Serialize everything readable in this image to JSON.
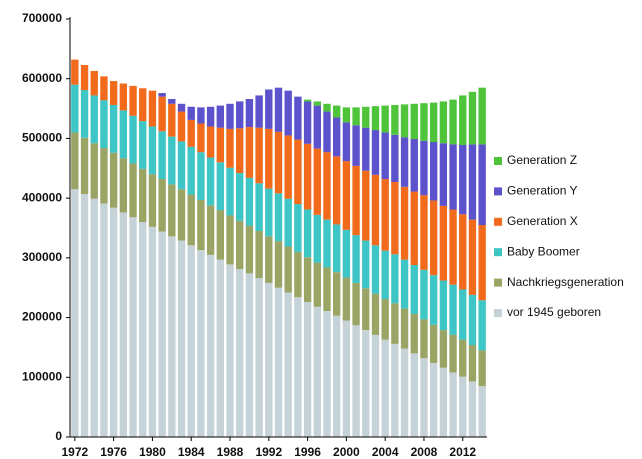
{
  "chart_data": {
    "type": "bar",
    "stacked": true,
    "categories": [
      "1972",
      null,
      null,
      null,
      "1976",
      null,
      null,
      null,
      "1980",
      null,
      null,
      null,
      "1984",
      null,
      null,
      null,
      "1988",
      null,
      null,
      null,
      "1992",
      null,
      null,
      null,
      "1996",
      null,
      null,
      null,
      "2000",
      null,
      null,
      null,
      "2004",
      null,
      null,
      null,
      "2008",
      null,
      null,
      null,
      "2012",
      null,
      null
    ],
    "series": [
      {
        "name": "vor 1945 geboren",
        "color": "#c5d3d9",
        "values": [
          415000,
          407000,
          399000,
          391000,
          384000,
          376000,
          368000,
          360000,
          352000,
          344000,
          336000,
          329000,
          321000,
          313000,
          305000,
          297000,
          289000,
          281000,
          274000,
          266000,
          258000,
          250000,
          242000,
          234000,
          226000,
          218000,
          211000,
          203000,
          195000,
          187000,
          179000,
          171000,
          163000,
          156000,
          148000,
          140000,
          132000,
          124000,
          116000,
          108000,
          101000,
          93000,
          85000
        ]
      },
      {
        "name": "Nachkriegsgeneration",
        "color": "#9aa565",
        "values": [
          95000,
          94000,
          93000,
          93000,
          92000,
          91000,
          90000,
          89000,
          88000,
          88000,
          87000,
          86000,
          85000,
          84000,
          83000,
          83000,
          82000,
          81000,
          80000,
          79000,
          78000,
          78000,
          77000,
          76000,
          75000,
          74000,
          73000,
          73000,
          72000,
          71000,
          70000,
          69000,
          68000,
          68000,
          67000,
          66000,
          65000,
          64000,
          63000,
          63000,
          62000,
          61000,
          60000
        ]
      },
      {
        "name": "Baby Boomer",
        "color": "#3ec5c5",
        "values": [
          80000,
          80000,
          80000,
          80000,
          80000,
          80000,
          80000,
          80000,
          80000,
          80000,
          80000,
          80000,
          80000,
          80000,
          80000,
          80000,
          80000,
          80000,
          80000,
          80000,
          80000,
          80000,
          80000,
          80000,
          80000,
          80000,
          80000,
          80000,
          80000,
          80000,
          80000,
          81000,
          81000,
          82000,
          82000,
          82000,
          83000,
          83000,
          83000,
          84000,
          84000,
          84000,
          84000
        ]
      },
      {
        "name": "Generation X",
        "color": "#f26b1d",
        "values": [
          42000,
          42000,
          41000,
          40000,
          40000,
          45000,
          50000,
          55000,
          60000,
          58000,
          55000,
          50000,
          45000,
          48000,
          52000,
          58000,
          65000,
          75000,
          85000,
          93000,
          100000,
          103000,
          106000,
          108000,
          110000,
          111000,
          113000,
          114000,
          115000,
          116000,
          117000,
          118000,
          120000,
          121000,
          122000,
          123000,
          125000,
          125000,
          125000,
          126000,
          126000,
          126000,
          126000
        ]
      },
      {
        "name": "Generation Y",
        "color": "#5b52cc",
        "values": [
          0,
          0,
          0,
          0,
          0,
          0,
          0,
          0,
          0,
          6000,
          8000,
          13000,
          22000,
          27000,
          33000,
          37000,
          42000,
          45000,
          47000,
          54000,
          66000,
          74000,
          75000,
          72000,
          71000,
          72000,
          68000,
          65000,
          65000,
          68000,
          72000,
          75000,
          78000,
          79000,
          83000,
          88000,
          91000,
          98000,
          105000,
          109000,
          116000,
          126000,
          135000
        ]
      },
      {
        "name": "Generation Z",
        "color": "#4fc43b",
        "values": [
          0,
          0,
          0,
          0,
          0,
          0,
          0,
          0,
          0,
          0,
          0,
          0,
          0,
          0,
          0,
          0,
          0,
          0,
          0,
          0,
          0,
          0,
          0,
          0,
          3000,
          7000,
          13000,
          20000,
          25000,
          30000,
          35000,
          40000,
          45000,
          50000,
          55000,
          59000,
          63000,
          66000,
          70000,
          75000,
          83000,
          88000,
          95000
        ]
      }
    ],
    "ylim": [
      0,
      700000
    ],
    "yticks": [
      0,
      100000,
      200000,
      300000,
      400000,
      500000,
      600000,
      700000
    ],
    "legend": "right"
  }
}
